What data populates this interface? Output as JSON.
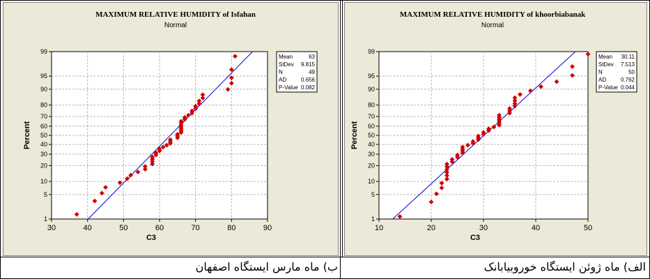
{
  "captions": {
    "left": "ب) ماه مارس ایستگاه اصفهان",
    "right": "الف) ماه ژوئن ایستگاه خوروبیابانک"
  },
  "colors": {
    "panel_bg": "#ece9d8",
    "plot_bg": "#ffffff",
    "point": "#d00000",
    "fit_line": "#0000cc",
    "grid": "#b4b4b4"
  },
  "chart_data": [
    {
      "type": "scatter",
      "subtype": "normal-probability-plot",
      "title": "MAXIMUM  RELATIVE  HUMIDITY of Isfahan",
      "subtitle": "Normal",
      "xlabel": "C3",
      "ylabel": "Percent",
      "xlim": [
        30,
        90
      ],
      "x_ticks": [
        30,
        40,
        50,
        60,
        70,
        80,
        90
      ],
      "y_ticks": [
        1,
        5,
        10,
        20,
        30,
        40,
        50,
        60,
        70,
        80,
        90,
        95,
        99
      ],
      "y_scale": "normal-probability",
      "grid": true,
      "fit_line": {
        "mean": 63,
        "stdev": 9.815
      },
      "stats": [
        {
          "label": "Mean",
          "value": "63"
        },
        {
          "label": "StDev",
          "value": "9.815"
        },
        {
          "label": "N",
          "value": "49"
        },
        {
          "label": "AD",
          "value": "0.656"
        },
        {
          "label": "P-Value",
          "value": "0.082"
        }
      ],
      "points": [
        {
          "x": 37,
          "y": 1.4
        },
        {
          "x": 42,
          "y": 3.4
        },
        {
          "x": 44,
          "y": 5.4
        },
        {
          "x": 45,
          "y": 7.4
        },
        {
          "x": 49,
          "y": 9.4
        },
        {
          "x": 51,
          "y": 11.4
        },
        {
          "x": 52,
          "y": 13.4
        },
        {
          "x": 54,
          "y": 15.4
        },
        {
          "x": 56,
          "y": 17.3
        },
        {
          "x": 56,
          "y": 19.3
        },
        {
          "x": 58,
          "y": 21.3
        },
        {
          "x": 58,
          "y": 23.3
        },
        {
          "x": 58,
          "y": 25.3
        },
        {
          "x": 58,
          "y": 27.3
        },
        {
          "x": 59,
          "y": 29.3
        },
        {
          "x": 59,
          "y": 31.3
        },
        {
          "x": 60,
          "y": 33.3
        },
        {
          "x": 60,
          "y": 35.3
        },
        {
          "x": 61,
          "y": 37.2
        },
        {
          "x": 62,
          "y": 39.2
        },
        {
          "x": 63,
          "y": 41.2
        },
        {
          "x": 63,
          "y": 43.2
        },
        {
          "x": 63,
          "y": 45.2
        },
        {
          "x": 65,
          "y": 47.2
        },
        {
          "x": 65,
          "y": 49.2
        },
        {
          "x": 65,
          "y": 51.2
        },
        {
          "x": 66,
          "y": 53.2
        },
        {
          "x": 66,
          "y": 55.2
        },
        {
          "x": 66,
          "y": 57.2
        },
        {
          "x": 66,
          "y": 59.1
        },
        {
          "x": 66,
          "y": 61.1
        },
        {
          "x": 66,
          "y": 63.1
        },
        {
          "x": 66,
          "y": 65.1
        },
        {
          "x": 67,
          "y": 67.1
        },
        {
          "x": 67,
          "y": 69.1
        },
        {
          "x": 68,
          "y": 71.1
        },
        {
          "x": 69,
          "y": 73.1
        },
        {
          "x": 69,
          "y": 75.1
        },
        {
          "x": 70,
          "y": 77.1
        },
        {
          "x": 70,
          "y": 79.1
        },
        {
          "x": 71,
          "y": 81.0
        },
        {
          "x": 71,
          "y": 83.0
        },
        {
          "x": 72,
          "y": 85.0
        },
        {
          "x": 72,
          "y": 87.0
        },
        {
          "x": 79,
          "y": 89.9
        },
        {
          "x": 80,
          "y": 92.6
        },
        {
          "x": 80,
          "y": 94.5
        },
        {
          "x": 80,
          "y": 96.6
        },
        {
          "x": 81,
          "y": 98.6
        }
      ]
    },
    {
      "type": "scatter",
      "subtype": "normal-probability-plot",
      "title": "MAXIMUM  RELATIVE  HUMIDITY of khoorbiabanak",
      "subtitle": "Normal",
      "xlabel": "C3",
      "ylabel": "Percent",
      "xlim": [
        10,
        50
      ],
      "x_ticks": [
        10,
        20,
        30,
        40,
        50
      ],
      "y_ticks": [
        1,
        5,
        10,
        20,
        30,
        40,
        50,
        60,
        70,
        80,
        90,
        95,
        99
      ],
      "y_scale": "normal-probability",
      "grid": true,
      "fit_line": {
        "mean": 30.11,
        "stdev": 7.513
      },
      "stats": [
        {
          "label": "Mean",
          "value": "30.11"
        },
        {
          "label": "StDev",
          "value": "7.513"
        },
        {
          "label": "N",
          "value": "50"
        },
        {
          "label": "AD",
          "value": "0.762"
        },
        {
          "label": "P-Value",
          "value": "0.044"
        }
      ],
      "points": [
        {
          "x": 14,
          "y": 1.2
        },
        {
          "x": 20,
          "y": 3.2
        },
        {
          "x": 21,
          "y": 5.2
        },
        {
          "x": 22,
          "y": 7.2
        },
        {
          "x": 22,
          "y": 9.2
        },
        {
          "x": 23,
          "y": 11.2
        },
        {
          "x": 23,
          "y": 13.2
        },
        {
          "x": 23,
          "y": 15.2
        },
        {
          "x": 23,
          "y": 17.2
        },
        {
          "x": 23,
          "y": 19.2
        },
        {
          "x": 23,
          "y": 21.2
        },
        {
          "x": 24,
          "y": 23.2
        },
        {
          "x": 24,
          "y": 25.2
        },
        {
          "x": 25,
          "y": 27.2
        },
        {
          "x": 25,
          "y": 29.2
        },
        {
          "x": 26,
          "y": 31.2
        },
        {
          "x": 26,
          "y": 33.2
        },
        {
          "x": 26,
          "y": 35.2
        },
        {
          "x": 26,
          "y": 37.2
        },
        {
          "x": 27,
          "y": 39.2
        },
        {
          "x": 28,
          "y": 41.2
        },
        {
          "x": 28,
          "y": 43.2
        },
        {
          "x": 29,
          "y": 45.2
        },
        {
          "x": 29,
          "y": 47.2
        },
        {
          "x": 29,
          "y": 49.2
        },
        {
          "x": 30,
          "y": 51.2
        },
        {
          "x": 30,
          "y": 53.2
        },
        {
          "x": 31,
          "y": 55.2
        },
        {
          "x": 31,
          "y": 57.2
        },
        {
          "x": 32,
          "y": 59.2
        },
        {
          "x": 33,
          "y": 61.2
        },
        {
          "x": 33,
          "y": 63.2
        },
        {
          "x": 33,
          "y": 65.2
        },
        {
          "x": 33,
          "y": 67.2
        },
        {
          "x": 33,
          "y": 69.2
        },
        {
          "x": 33,
          "y": 71.2
        },
        {
          "x": 35,
          "y": 73.2
        },
        {
          "x": 35,
          "y": 75.2
        },
        {
          "x": 35,
          "y": 77.2
        },
        {
          "x": 36,
          "y": 79.2
        },
        {
          "x": 36,
          "y": 81.2
        },
        {
          "x": 36,
          "y": 83.2
        },
        {
          "x": 36,
          "y": 85.2
        },
        {
          "x": 37,
          "y": 87.2
        },
        {
          "x": 39,
          "y": 89.2
        },
        {
          "x": 41,
          "y": 91.2
        },
        {
          "x": 44,
          "y": 93.2
        },
        {
          "x": 47,
          "y": 95.2
        },
        {
          "x": 47,
          "y": 97.2
        },
        {
          "x": 50,
          "y": 98.8
        }
      ]
    }
  ]
}
